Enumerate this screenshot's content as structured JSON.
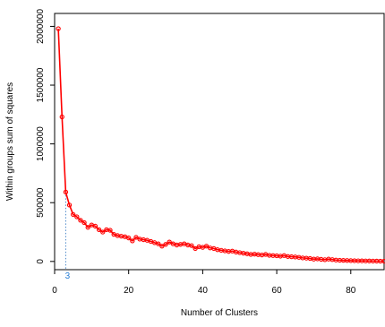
{
  "chart_data": {
    "type": "line",
    "title": "",
    "xlabel": "Number of Clusters",
    "ylabel": "Within groups sum of squares",
    "xlim": [
      0,
      89
    ],
    "ylim": [
      -70000,
      2110000
    ],
    "xticks": [
      0,
      20,
      40,
      60,
      80
    ],
    "xtick_labels": [
      "0",
      "20",
      "40",
      "60",
      "80"
    ],
    "yticks": [
      0,
      500000,
      1000000,
      1500000,
      2000000
    ],
    "ytick_labels": [
      "0",
      "500000",
      "1000000",
      "1500000",
      "2000000"
    ],
    "grid": false,
    "annotation": {
      "label": "3",
      "x": 3,
      "y": 590000
    },
    "series": [
      {
        "color": "#ff0000",
        "x": [
          1,
          2,
          3,
          4,
          5,
          6,
          7,
          8,
          9,
          10,
          11,
          12,
          13,
          14,
          15,
          16,
          17,
          18,
          19,
          20,
          21,
          22,
          23,
          24,
          25,
          26,
          27,
          28,
          29,
          30,
          31,
          32,
          33,
          34,
          35,
          36,
          37,
          38,
          39,
          40,
          41,
          42,
          43,
          44,
          45,
          46,
          47,
          48,
          49,
          50,
          51,
          52,
          53,
          54,
          55,
          56,
          57,
          58,
          59,
          60,
          61,
          62,
          63,
          64,
          65,
          66,
          67,
          68,
          69,
          70,
          71,
          72,
          73,
          74,
          75,
          76,
          77,
          78,
          79,
          80,
          81,
          82,
          83,
          84,
          85,
          86,
          87,
          88,
          89
        ],
        "y": [
          1980000,
          1230000,
          590000,
          480000,
          400000,
          380000,
          350000,
          330000,
          290000,
          310000,
          300000,
          270000,
          250000,
          270000,
          265000,
          230000,
          220000,
          215000,
          210000,
          200000,
          175000,
          205000,
          190000,
          185000,
          180000,
          170000,
          160000,
          150000,
          130000,
          145000,
          165000,
          150000,
          140000,
          145000,
          150000,
          140000,
          135000,
          110000,
          125000,
          120000,
          130000,
          115000,
          110000,
          100000,
          95000,
          90000,
          85000,
          88000,
          80000,
          75000,
          70000,
          65000,
          60000,
          62000,
          58000,
          55000,
          60000,
          52000,
          50000,
          48000,
          45000,
          50000,
          42000,
          40000,
          38000,
          35000,
          30000,
          28000,
          25000,
          20000,
          22000,
          18000,
          15000,
          20000,
          16000,
          12000,
          10000,
          9000,
          8000,
          7000,
          6000,
          5500,
          5000,
          4500,
          4000,
          3500,
          3000,
          2500,
          2000
        ]
      }
    ]
  }
}
